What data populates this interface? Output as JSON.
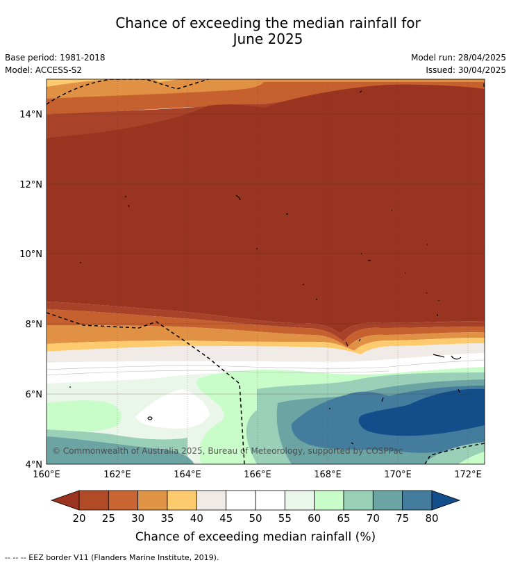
{
  "title_line1": "Chance of exceeding the median rainfall for",
  "title_line2": "June 2025",
  "base_period": "Base period: 1981-2018",
  "model": "Model: ACCESS-S2",
  "model_run": "Model run: 28/04/2025",
  "issued": "Issued: 30/04/2025",
  "copyright": "© Commonwealth of Australia 2025, Bureau of Meteorology, supported by COSPPac",
  "footer": "--  --  -- EEZ border V11 (Flanders Marine Institute, 2019).",
  "x_ticks": [
    "160°E",
    "162°E",
    "164°E",
    "166°E",
    "168°E",
    "170°E",
    "172°E"
  ],
  "y_ticks": [
    "14°N",
    "12°N",
    "10°N",
    "8°N",
    "6°N",
    "4°N"
  ],
  "colorbar": {
    "label": "Chance of exceeding median rainfall (%)",
    "ticks": [
      "20",
      "25",
      "30",
      "35",
      "40",
      "45",
      "50",
      "55",
      "60",
      "65",
      "70",
      "75",
      "80"
    ],
    "colors": [
      "#9a3320",
      "#b14a27",
      "#c96533",
      "#e09546",
      "#fdcb6e",
      "#f0ebe7",
      "#ffffff",
      "#ffffff",
      "#eaf6ea",
      "#c8fcc8",
      "#9acfb8",
      "#6ca3a3",
      "#437c9c",
      "#144e8a"
    ]
  },
  "map_colors": {
    "lt20": "#983420",
    "c20_25": "#a8432a",
    "c25_30": "#c6602f",
    "c30_35": "#e09144",
    "c35_40": "#fdcb6e",
    "c40_45": "#f0ebe7",
    "c45_55": "#ffffff",
    "c55_60": "#eaf6ea",
    "c60_65": "#c8fcc8",
    "c65_70": "#9acfb8",
    "c70_75": "#6ca3a3",
    "c75_80": "#437c9c",
    "gt80": "#144e8a"
  }
}
